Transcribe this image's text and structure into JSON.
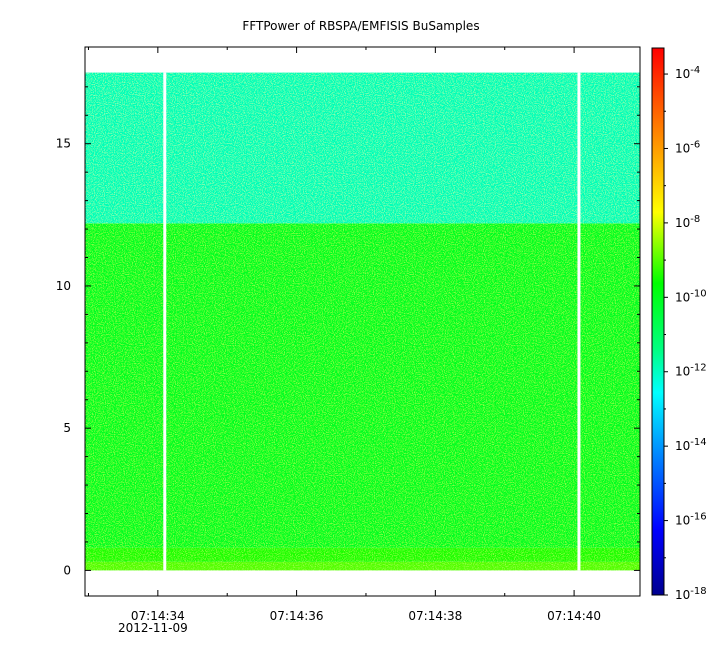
{
  "chart_data": {
    "type": "heatmap",
    "title": "FFTPower of RBSPA/EMFISIS  BuSamples",
    "xlabel": "",
    "ylabel": "",
    "x": {
      "range_seconds": [
        32.95,
        40.95
      ],
      "major_ticks": [
        {
          "seconds": 34,
          "label": "07:14:34"
        },
        {
          "seconds": 36,
          "label": "07:14:36"
        },
        {
          "seconds": 38,
          "label": "07:14:38"
        },
        {
          "seconds": 40,
          "label": "07:14:40"
        }
      ],
      "minor_ticks_seconds": [
        33,
        35,
        37,
        39
      ],
      "date_label": "2012-11-09"
    },
    "y": {
      "range": [
        -0.9,
        18.4
      ],
      "ticks": [
        {
          "value": 0,
          "label": "0"
        },
        {
          "value": 5,
          "label": "5"
        },
        {
          "value": 10,
          "label": "10"
        },
        {
          "value": 15,
          "label": "15"
        }
      ],
      "data_max": 17.5
    },
    "colorbar": {
      "scale": "log",
      "exponent_range": [
        -18,
        -3.3
      ],
      "ticks": [
        {
          "exp": -4,
          "base": "10",
          "sup": "-4"
        },
        {
          "exp": -6,
          "base": "10",
          "sup": "-6"
        },
        {
          "exp": -8,
          "base": "10",
          "sup": "-8"
        },
        {
          "exp": -10,
          "base": "10",
          "sup": "-10"
        },
        {
          "exp": -12,
          "base": "10",
          "sup": "-12"
        },
        {
          "exp": -14,
          "base": "10",
          "sup": "-14"
        },
        {
          "exp": -16,
          "base": "10",
          "sup": "-16"
        },
        {
          "exp": -18,
          "base": "10",
          "sup": "-18"
        }
      ]
    },
    "bands": [
      {
        "y0": 0.0,
        "y1": 0.3,
        "log_power": -9.0
      },
      {
        "y0": 0.3,
        "y1": 0.8,
        "log_power": -9.4
      },
      {
        "y0": 0.8,
        "y1": 12.2,
        "log_power": -10.1
      },
      {
        "y0": 12.2,
        "y1": 17.5,
        "log_power": -11.9
      }
    ],
    "data_gaps_seconds": [
      34.1,
      40.07
    ]
  }
}
